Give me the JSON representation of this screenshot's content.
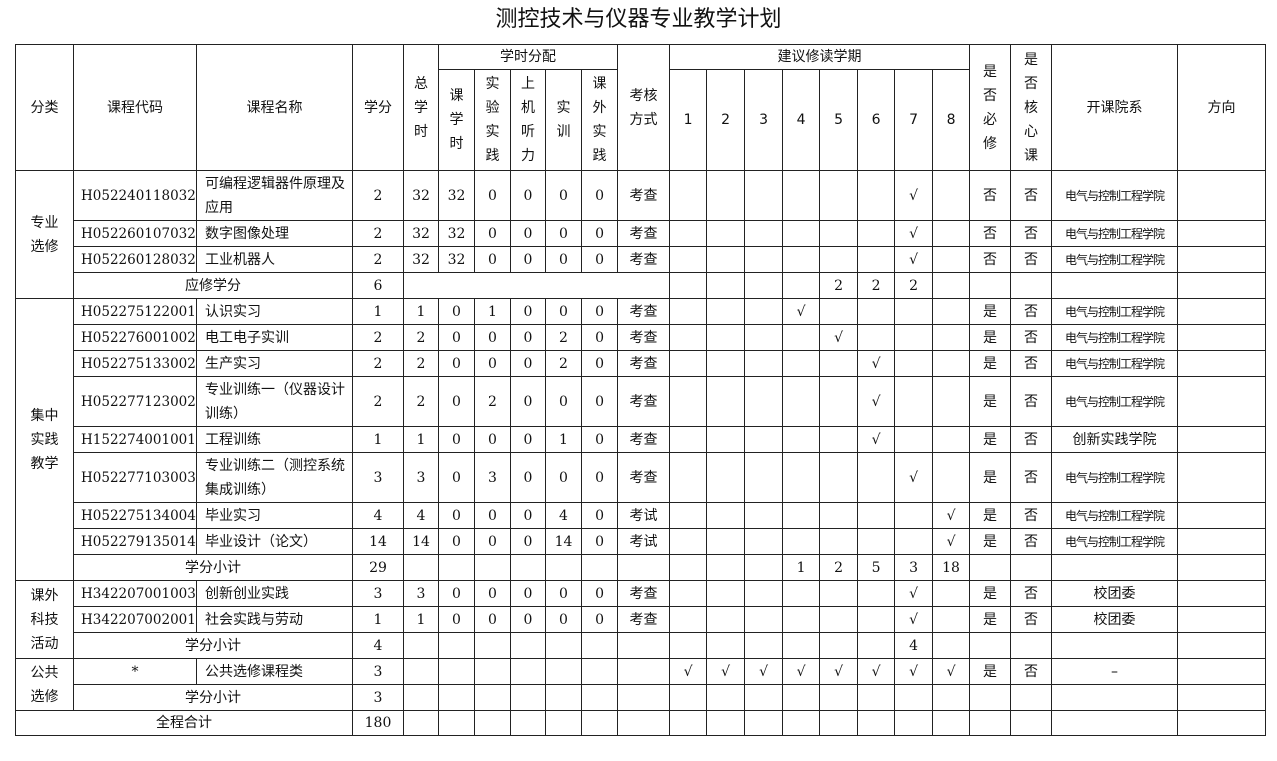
{
  "title": "测控技术与仪器专业教学计划",
  "headers": {
    "category": "分类",
    "code": "课程代码",
    "name": "课程名称",
    "credits": "学分",
    "total_hours": "总学时",
    "hours_group": "学时分配",
    "hours": [
      "课学时",
      "实验实践",
      "上机听力",
      "实训",
      "课外实践"
    ],
    "exam": "考核方式",
    "semester_group": "建议修读学期",
    "semesters": [
      "1",
      "2",
      "3",
      "4",
      "5",
      "6",
      "7",
      "8"
    ],
    "required": "是否必修",
    "core": "是否核心课",
    "dept": "开课院系",
    "direction": "方向"
  },
  "check_mark": "√",
  "groups": [
    {
      "category": "专业选修",
      "courses": [
        {
          "code": "H052240118032",
          "name": "可编程逻辑器件原理及应用",
          "credits": "2",
          "total": "32",
          "hours": [
            "32",
            "0",
            "0",
            "0",
            "0"
          ],
          "exam": "考查",
          "semester": 7,
          "required": "否",
          "core": "否",
          "dept": "电气与控制工程学院",
          "tall": true
        },
        {
          "code": "H052260107032",
          "name": "数字图像处理",
          "credits": "2",
          "total": "32",
          "hours": [
            "32",
            "0",
            "0",
            "0",
            "0"
          ],
          "exam": "考查",
          "semester": 7,
          "required": "否",
          "core": "否",
          "dept": "电气与控制工程学院"
        },
        {
          "code": "H052260128032",
          "name": "工业机器人",
          "credits": "2",
          "total": "32",
          "hours": [
            "32",
            "0",
            "0",
            "0",
            "0"
          ],
          "exam": "考查",
          "semester": 7,
          "required": "否",
          "core": "否",
          "dept": "电气与控制工程学院"
        }
      ],
      "subtotal": {
        "label": "应修学分",
        "credits": "6",
        "semesters": [
          "",
          "",
          "",
          "",
          "2",
          "2",
          "2",
          ""
        ],
        "merge_hours": true
      }
    },
    {
      "category": "集中实践教学",
      "courses": [
        {
          "code": "H052275122001",
          "name": "认识实习",
          "credits": "1",
          "total": "1",
          "hours": [
            "0",
            "1",
            "0",
            "0",
            "0"
          ],
          "exam": "考查",
          "semester": 4,
          "required": "是",
          "core": "否",
          "dept": "电气与控制工程学院"
        },
        {
          "code": "H052276001002",
          "name": "电工电子实训",
          "credits": "2",
          "total": "2",
          "hours": [
            "0",
            "0",
            "0",
            "2",
            "0"
          ],
          "exam": "考查",
          "semester": 5,
          "required": "是",
          "core": "否",
          "dept": "电气与控制工程学院"
        },
        {
          "code": "H052275133002",
          "name": "生产实习",
          "credits": "2",
          "total": "2",
          "hours": [
            "0",
            "0",
            "0",
            "2",
            "0"
          ],
          "exam": "考查",
          "semester": 6,
          "required": "是",
          "core": "否",
          "dept": "电气与控制工程学院"
        },
        {
          "code": "H052277123002",
          "name": "专业训练一（仪器设计训练）",
          "credits": "2",
          "total": "2",
          "hours": [
            "0",
            "2",
            "0",
            "0",
            "0"
          ],
          "exam": "考查",
          "semester": 6,
          "required": "是",
          "core": "否",
          "dept": "电气与控制工程学院",
          "tall": true
        },
        {
          "code": "H152274001001",
          "name": "工程训练",
          "credits": "1",
          "total": "1",
          "hours": [
            "0",
            "0",
            "0",
            "1",
            "0"
          ],
          "exam": "考查",
          "semester": 6,
          "required": "是",
          "core": "否",
          "dept": "创新实践学院",
          "dept_large": true
        },
        {
          "code": "H052277103003",
          "name": "专业训练二（测控系统集成训练）",
          "credits": "3",
          "total": "3",
          "hours": [
            "0",
            "3",
            "0",
            "0",
            "0"
          ],
          "exam": "考查",
          "semester": 7,
          "required": "是",
          "core": "否",
          "dept": "电气与控制工程学院",
          "tall": true
        },
        {
          "code": "H052275134004",
          "name": "毕业实习",
          "credits": "4",
          "total": "4",
          "hours": [
            "0",
            "0",
            "0",
            "4",
            "0"
          ],
          "exam": "考试",
          "semester": 8,
          "required": "是",
          "core": "否",
          "dept": "电气与控制工程学院"
        },
        {
          "code": "H052279135014",
          "name": "毕业设计（论文）",
          "credits": "14",
          "total": "14",
          "hours": [
            "0",
            "0",
            "0",
            "14",
            "0"
          ],
          "exam": "考试",
          "semester": 8,
          "required": "是",
          "core": "否",
          "dept": "电气与控制工程学院"
        }
      ],
      "subtotal": {
        "label": "学分小计",
        "credits": "29",
        "semesters": [
          "",
          "",
          "",
          "1",
          "2",
          "5",
          "3",
          "18"
        ]
      }
    },
    {
      "category": "课外科技活动",
      "courses": [
        {
          "code": "H342207001003",
          "name": "创新创业实践",
          "credits": "3",
          "total": "3",
          "hours": [
            "0",
            "0",
            "0",
            "0",
            "0"
          ],
          "exam": "考查",
          "semester": 7,
          "required": "是",
          "core": "否",
          "dept": "校团委",
          "dept_large": true
        },
        {
          "code": "H342207002001",
          "name": "社会实践与劳动",
          "credits": "1",
          "total": "1",
          "hours": [
            "0",
            "0",
            "0",
            "0",
            "0"
          ],
          "exam": "考查",
          "semester": 7,
          "required": "是",
          "core": "否",
          "dept": "校团委",
          "dept_large": true
        }
      ],
      "subtotal": {
        "label": "学分小计",
        "credits": "4",
        "semesters": [
          "",
          "",
          "",
          "",
          "",
          "",
          "4",
          ""
        ]
      }
    },
    {
      "category": "公共选修",
      "courses": [
        {
          "code": "*",
          "name": "公共选修课程类",
          "credits": "3",
          "total": "",
          "hours": [
            "",
            "",
            "",
            "",
            ""
          ],
          "exam": "",
          "semester": "all",
          "required": "是",
          "core": "否",
          "dept": "–",
          "dept_large": true,
          "code_center": true
        }
      ],
      "subtotal": {
        "label": "学分小计",
        "credits": "3",
        "semesters": [
          "",
          "",
          "",
          "",
          "",
          "",
          "",
          ""
        ]
      }
    }
  ],
  "grand_total": {
    "label": "全程合计",
    "credits": "180"
  }
}
